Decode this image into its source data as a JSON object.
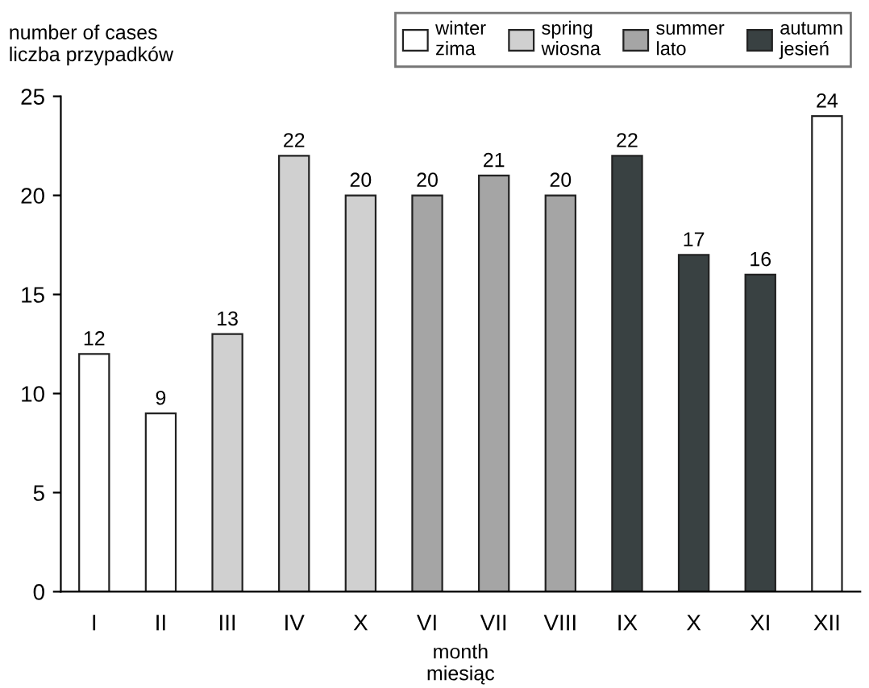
{
  "chart_data": {
    "type": "bar",
    "ylabel": "number of cases\nliczba przypadków",
    "xlabel": "month\nmiesiąc",
    "categories": [
      "I",
      "II",
      "III",
      "IV",
      "X",
      "VI",
      "VII",
      "VIII",
      "IX",
      "X",
      "XI",
      "XII"
    ],
    "series": [
      {
        "name": "winter\nzima",
        "color": "#ffffff",
        "values": [
          12,
          9,
          null,
          null,
          null,
          null,
          null,
          null,
          null,
          null,
          null,
          24
        ]
      },
      {
        "name": "spring\nwiosna",
        "color": "#d0d0d0",
        "values": [
          null,
          null,
          13,
          22,
          20,
          null,
          null,
          null,
          null,
          null,
          null,
          null
        ]
      },
      {
        "name": "summer\nlato",
        "color": "#a5a5a5",
        "values": [
          null,
          null,
          null,
          null,
          null,
          20,
          21,
          20,
          null,
          null,
          null,
          null
        ]
      },
      {
        "name": "autumn\njesień",
        "color": "#394142",
        "values": [
          null,
          null,
          null,
          null,
          null,
          null,
          null,
          null,
          22,
          17,
          16,
          null
        ]
      }
    ],
    "ylim": [
      0,
      25
    ],
    "yticks": [
      0,
      5,
      10,
      15,
      20,
      25
    ],
    "grid": false,
    "legend": "top right",
    "data_labels": true
  }
}
